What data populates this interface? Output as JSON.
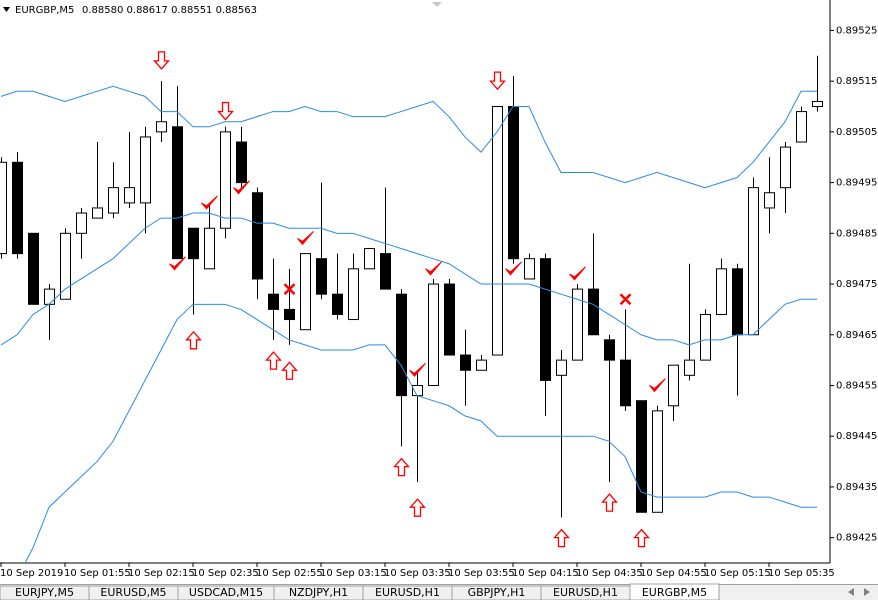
{
  "chart_data": {
    "type": "candlestick",
    "title": "EURGBP,M5",
    "subtitle": "0.88580 0.88617 0.88551 0.88563",
    "categories": [
      "10 Sep 2019",
      null,
      null,
      null,
      "10 Sep 01:55",
      null,
      null,
      null,
      "10 Sep 02:15",
      null,
      null,
      null,
      "10 Sep 02:35",
      null,
      null,
      null,
      "10 Sep 02:55",
      null,
      null,
      null,
      "10 Sep 03:15",
      null,
      null,
      null,
      "10 Sep 03:35",
      null,
      null,
      null,
      "10 Sep 03:55",
      null,
      null,
      null,
      "10 Sep 04:15",
      null,
      null,
      null,
      "10 Sep 04:35",
      null,
      null,
      null,
      "10 Sep 04:55",
      null,
      null,
      null,
      "10 Sep 05:15",
      null,
      null,
      null,
      "10 Sep 05:35",
      null,
      null,
      null
    ],
    "open": [
      0.89481,
      0.89499,
      0.89485,
      0.89471,
      0.89472,
      0.89485,
      0.89488,
      0.89489,
      0.89491,
      0.89491,
      0.89505,
      0.89506,
      0.89486,
      0.89478,
      0.89486,
      0.89503,
      0.89493,
      0.89473,
      0.8947,
      0.89466,
      0.8948,
      0.89473,
      0.89468,
      0.89478,
      0.89481,
      0.89473,
      0.89453,
      0.89455,
      0.89475,
      0.89461,
      0.89458,
      0.89461,
      0.8951,
      0.89476,
      0.8948,
      0.89457,
      0.8946,
      0.89474,
      0.89464,
      0.8946,
      0.89452,
      0.8943,
      0.89451,
      0.89457,
      0.8946,
      0.89469,
      0.89478,
      0.89465,
      0.8949,
      0.89494,
      0.89503,
      0.8951
    ],
    "high": [
      0.895,
      0.89501,
      0.89485,
      0.89475,
      0.89486,
      0.8949,
      0.89503,
      0.89499,
      0.89505,
      0.89506,
      0.89515,
      0.89514,
      0.89486,
      0.89491,
      0.89506,
      0.89506,
      0.89494,
      0.8948,
      0.89478,
      0.89481,
      0.89495,
      0.89481,
      0.89481,
      0.89482,
      0.89494,
      0.89474,
      0.89458,
      0.89476,
      0.89476,
      0.89466,
      0.89461,
      0.8951,
      0.89516,
      0.89481,
      0.89481,
      0.89462,
      0.89475,
      0.89485,
      0.89465,
      0.8947,
      0.89452,
      0.89451,
      0.89459,
      0.89479,
      0.8947,
      0.8948,
      0.89479,
      0.89496,
      0.895,
      0.89503,
      0.8951,
      0.8952
    ],
    "low": [
      0.8948,
      0.8948,
      0.89471,
      0.89464,
      0.89472,
      0.8948,
      0.89488,
      0.89488,
      0.8949,
      0.89485,
      0.89503,
      0.8948,
      0.89469,
      0.89478,
      0.89484,
      0.89494,
      0.89472,
      0.89464,
      0.89463,
      0.89466,
      0.89472,
      0.89468,
      0.89468,
      0.89478,
      0.89474,
      0.89443,
      0.89436,
      0.89455,
      0.89461,
      0.89451,
      0.89458,
      0.89461,
      0.89479,
      0.89476,
      0.89449,
      0.89429,
      0.8946,
      0.89465,
      0.89436,
      0.8945,
      0.8943,
      0.8943,
      0.89448,
      0.89456,
      0.8946,
      0.89469,
      0.89453,
      0.89465,
      0.89485,
      0.89489,
      0.89503,
      0.89509
    ],
    "close": [
      0.89499,
      0.89481,
      0.89471,
      0.89474,
      0.89485,
      0.89489,
      0.8949,
      0.89494,
      0.89494,
      0.89504,
      0.89507,
      0.8948,
      0.8948,
      0.89486,
      0.89505,
      0.89495,
      0.89476,
      0.8947,
      0.89468,
      0.89481,
      0.89473,
      0.89469,
      0.89478,
      0.89482,
      0.89474,
      0.89453,
      0.89455,
      0.89475,
      0.89461,
      0.89458,
      0.8946,
      0.8951,
      0.8948,
      0.8948,
      0.89456,
      0.8946,
      0.89474,
      0.89465,
      0.8946,
      0.89451,
      0.8943,
      0.8945,
      0.89459,
      0.8946,
      0.89469,
      0.89478,
      0.89465,
      0.89494,
      0.89493,
      0.89502,
      0.89509,
      0.89511
    ],
    "bands": {
      "color": "#2b8ae6",
      "upper": [
        0.89512,
        0.89513,
        0.89513,
        0.89512,
        0.89511,
        0.89512,
        0.89513,
        0.89514,
        0.89513,
        0.89512,
        0.89509,
        0.89509,
        0.89506,
        0.89506,
        0.89507,
        0.89507,
        0.89508,
        0.89509,
        0.89509,
        0.8951,
        0.89509,
        0.89509,
        0.89508,
        0.89508,
        0.89508,
        0.89509,
        0.8951,
        0.89511,
        0.89508,
        0.89504,
        0.89501,
        0.89505,
        0.8951,
        0.8951,
        0.89503,
        0.89497,
        0.89497,
        0.89497,
        0.89496,
        0.89495,
        0.89496,
        0.89497,
        0.89496,
        0.89495,
        0.89494,
        0.89495,
        0.89496,
        0.89499,
        0.89503,
        0.89507,
        0.89513,
        0.89513
      ],
      "middle": [
        0.89463,
        0.89465,
        0.89469,
        0.89471,
        0.89474,
        0.89476,
        0.89478,
        0.8948,
        0.89483,
        0.89486,
        0.89488,
        0.89488,
        0.89489,
        0.89489,
        0.89488,
        0.89488,
        0.89487,
        0.89487,
        0.89486,
        0.89486,
        0.89486,
        0.89485,
        0.89485,
        0.89484,
        0.89483,
        0.89482,
        0.89481,
        0.8948,
        0.89479,
        0.89477,
        0.89475,
        0.89475,
        0.89475,
        0.89475,
        0.89474,
        0.89473,
        0.89472,
        0.89471,
        0.89469,
        0.89467,
        0.89465,
        0.89464,
        0.89464,
        0.89463,
        0.89464,
        0.89464,
        0.89465,
        0.89465,
        0.89468,
        0.89471,
        0.89472,
        0.89472
      ],
      "lower": [
        0.89411,
        0.89417,
        0.89423,
        0.89431,
        0.89434,
        0.89437,
        0.8944,
        0.89444,
        0.8945,
        0.89456,
        0.89462,
        0.89468,
        0.89471,
        0.89471,
        0.89471,
        0.8947,
        0.89468,
        0.89466,
        0.89464,
        0.89463,
        0.89462,
        0.89462,
        0.89462,
        0.89463,
        0.89463,
        0.89459,
        0.89453,
        0.89452,
        0.89451,
        0.89449,
        0.89448,
        0.89445,
        0.89445,
        0.89445,
        0.89445,
        0.89445,
        0.89445,
        0.89445,
        0.89444,
        0.89441,
        0.89434,
        0.89433,
        0.89433,
        0.89433,
        0.89433,
        0.89434,
        0.89434,
        0.89433,
        0.89433,
        0.89432,
        0.89431,
        0.89431
      ]
    },
    "signals": {
      "color": "#ff0000",
      "down_arrows": [
        null,
        null,
        null,
        null,
        null,
        null,
        null,
        null,
        null,
        null,
        0.89519,
        null,
        null,
        null,
        0.89509,
        null,
        null,
        null,
        null,
        null,
        null,
        null,
        null,
        null,
        null,
        null,
        null,
        null,
        null,
        null,
        null,
        0.89515,
        null,
        null,
        null,
        null,
        null,
        null,
        null,
        null,
        null,
        null,
        null,
        null,
        null,
        null,
        null,
        null,
        null,
        null,
        null,
        null
      ],
      "up_arrows": [
        null,
        null,
        null,
        null,
        null,
        null,
        null,
        null,
        null,
        null,
        null,
        null,
        0.89464,
        null,
        null,
        null,
        null,
        0.8946,
        0.89458,
        null,
        null,
        null,
        null,
        null,
        null,
        0.89439,
        0.89431,
        null,
        null,
        null,
        null,
        null,
        null,
        null,
        null,
        0.89425,
        null,
        null,
        0.89432,
        null,
        0.89425,
        null,
        null,
        null,
        null,
        null,
        null,
        null,
        null,
        null,
        null,
        null
      ],
      "checks": [
        null,
        null,
        null,
        null,
        null,
        null,
        null,
        null,
        null,
        null,
        null,
        0.89479,
        null,
        0.89491,
        null,
        0.89494,
        null,
        null,
        null,
        0.89484,
        null,
        null,
        null,
        null,
        null,
        null,
        0.89458,
        0.89478,
        null,
        null,
        null,
        null,
        0.89478,
        null,
        null,
        null,
        0.89477,
        null,
        null,
        null,
        null,
        0.89455,
        null,
        null,
        null,
        null,
        null,
        null,
        null,
        null,
        null,
        null
      ],
      "crosses": [
        null,
        null,
        null,
        null,
        null,
        null,
        null,
        null,
        null,
        null,
        null,
        null,
        null,
        null,
        null,
        null,
        null,
        null,
        0.89474,
        null,
        null,
        null,
        null,
        null,
        null,
        null,
        null,
        null,
        null,
        null,
        null,
        null,
        null,
        null,
        null,
        null,
        null,
        null,
        null,
        0.89472,
        null,
        null,
        null,
        null,
        null,
        null,
        null,
        null,
        null,
        null,
        null,
        null
      ]
    },
    "ylim": [
      0.8942,
      0.89531
    ],
    "yticks": [
      0.89525,
      0.89515,
      0.89505,
      0.89495,
      0.89485,
      0.89475,
      0.89465,
      0.89455,
      0.89445,
      0.89435,
      0.89425
    ]
  },
  "tabs": [
    "EURJPY,M5",
    "EURUSD,M5",
    "USDCAD,M15",
    "NZDJPY,H1",
    "EURUSD,H1",
    "GBPJPY,H1",
    "EURUSD,H1",
    "EURGBP,M5"
  ],
  "active_tab": 7
}
